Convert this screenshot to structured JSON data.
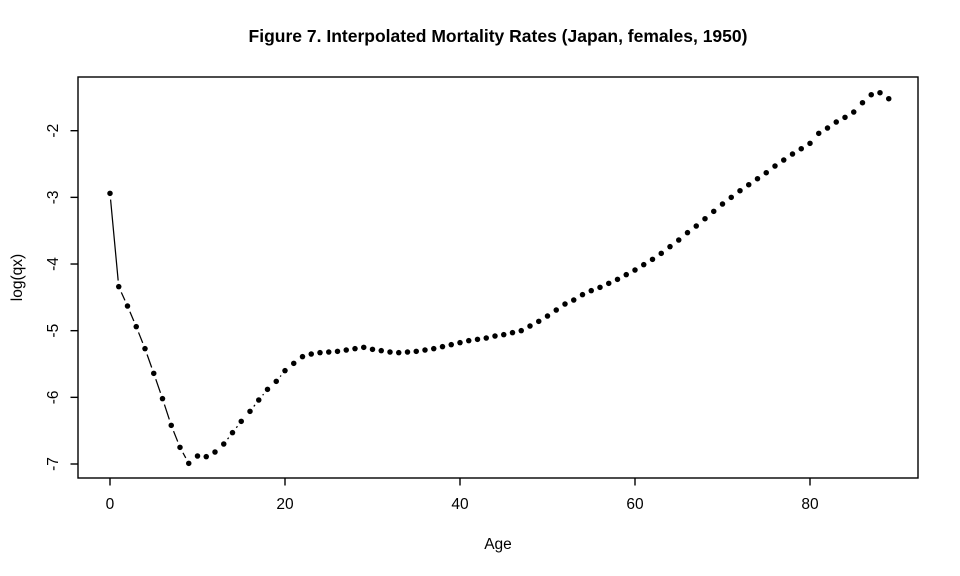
{
  "figure": {
    "title": "Figure 7. Interpolated Mortality Rates (Japan, females, 1950)"
  },
  "chart_data": {
    "type": "scatter",
    "title": "Figure 7. Interpolated Mortality Rates (Japan, females, 1950)",
    "xlabel": "Age",
    "ylabel": "log(qx)",
    "x": [
      0,
      1,
      2,
      3,
      4,
      5,
      6,
      7,
      8,
      9,
      10,
      11,
      12,
      13,
      14,
      15,
      16,
      17,
      18,
      19,
      20,
      21,
      22,
      23,
      24,
      25,
      26,
      27,
      28,
      29,
      30,
      31,
      32,
      33,
      34,
      35,
      36,
      37,
      38,
      39,
      40,
      41,
      42,
      43,
      44,
      45,
      46,
      47,
      48,
      49,
      50,
      51,
      52,
      53,
      54,
      55,
      56,
      57,
      58,
      59,
      60,
      61,
      62,
      63,
      64,
      65,
      66,
      67,
      68,
      69,
      70,
      71,
      72,
      73,
      74,
      75,
      76,
      77,
      78,
      79,
      80,
      81,
      82,
      83,
      84,
      85,
      86,
      87,
      88,
      89
    ],
    "y": [
      -2.94,
      -4.34,
      -4.63,
      -4.94,
      -5.27,
      -5.64,
      -6.02,
      -6.42,
      -6.75,
      -6.99,
      -6.88,
      -6.89,
      -6.82,
      -6.7,
      -6.53,
      -6.36,
      -6.21,
      -6.04,
      -5.88,
      -5.76,
      -5.6,
      -5.49,
      -5.39,
      -5.35,
      -5.33,
      -5.32,
      -5.31,
      -5.29,
      -5.27,
      -5.25,
      -5.28,
      -5.3,
      -5.32,
      -5.33,
      -5.32,
      -5.31,
      -5.29,
      -5.27,
      -5.24,
      -5.21,
      -5.18,
      -5.15,
      -5.13,
      -5.11,
      -5.08,
      -5.06,
      -5.03,
      -5.0,
      -4.93,
      -4.86,
      -4.78,
      -4.69,
      -4.6,
      -4.54,
      -4.46,
      -4.4,
      -4.35,
      -4.29,
      -4.23,
      -4.16,
      -4.09,
      -4.01,
      -3.93,
      -3.84,
      -3.74,
      -3.64,
      -3.53,
      -3.43,
      -3.32,
      -3.21,
      -3.1,
      -3.0,
      -2.9,
      -2.81,
      -2.72,
      -2.63,
      -2.53,
      -2.44,
      -2.35,
      -2.27,
      -2.19,
      -2.04,
      -1.96,
      -1.87,
      -1.8,
      -1.72,
      -1.58,
      -1.46,
      -1.43,
      -1.52
    ],
    "xticks": [
      0,
      20,
      40,
      60,
      80
    ],
    "yticks": [
      -7,
      -6,
      -5,
      -4,
      -3,
      -2
    ],
    "xlim": [
      -3.657,
      92.343
    ],
    "ylim": [
      -7.21,
      -1.1945
    ],
    "grid": false,
    "legend": null,
    "marker": "filled-circle",
    "line_style": "points-joined-by-trimmed-segments (R type='b')",
    "colors": {
      "points": "#000000",
      "line": "#000000",
      "axis": "#000000",
      "title": "#000000",
      "background": "#ffffff"
    }
  }
}
